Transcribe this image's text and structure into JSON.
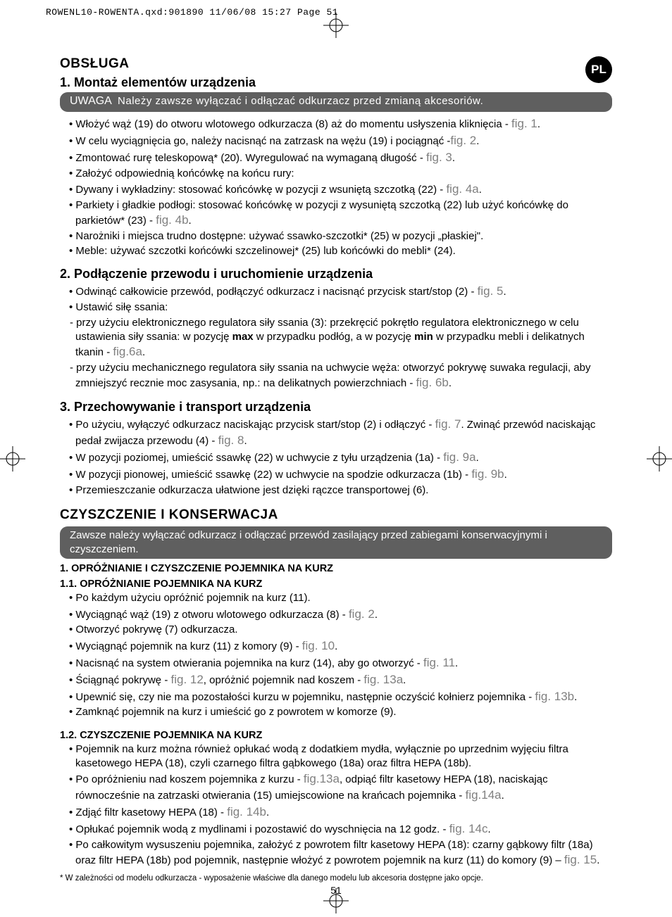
{
  "print_header": "ROWENL10-ROWENTA.qxd:901890  11/06/08  15:27  Page 51",
  "lang_badge": "PL",
  "page_number": "51",
  "section1": {
    "title": "OBSŁUGA",
    "sub1": {
      "title": "1. Montaż elementów urządzenia",
      "callout_label": "UWAGA",
      "callout_body": "Należy zawsze wyłączać i odłączać odkurzacz przed zmianą akcesoriów.",
      "items": [
        {
          "t": "bullet",
          "text": "Włożyć wąż (19) do otworu wlotowego odkurzacza (8) aż do momentu usłyszenia kliknięcia - ",
          "fig": "fig. 1",
          "tail": "."
        },
        {
          "t": "bullet",
          "text": "W celu wyciągnięcia go, należy nacisnąć na zatrzask na wężu (19) i pociągnąć -",
          "fig": "fig. 2",
          "tail": "."
        },
        {
          "t": "bullet",
          "text": "Zmontować rurę teleskopową* (20). Wyregulować na wymaganą długość - ",
          "fig": "fig. 3",
          "tail": "."
        },
        {
          "t": "bullet",
          "text": "Założyć odpowiednią końcówkę na końcu rury:"
        },
        {
          "t": "bullet",
          "text": "Dywany i wykładziny: stosować końcówkę w pozycji z wsuniętą szczotką (22) - ",
          "fig": "fig. 4a",
          "tail": "."
        },
        {
          "t": "bullet",
          "text": "Parkiety i gładkie podłogi: stosować końcówkę w pozycji z wysuniętą szczotką (22) lub użyć końcówkę do parkietów* (23)  - ",
          "fig": "fig. 4b",
          "tail": "."
        },
        {
          "t": "bullet",
          "text": "Narożniki i miejsca trudno dostępne: używać ssawko-szczotki* (25) w pozycji „płaskiej\"."
        },
        {
          "t": "bullet",
          "text": "Meble: używać szczotki końcówki szczelinowej* (25) lub końcówki do mebli* (24)."
        }
      ]
    },
    "sub2": {
      "title": "2. Podłączenie przewodu i uruchomienie urządzenia",
      "items": [
        {
          "t": "bullet",
          "text": "Odwinąć całkowicie przewód, podłączyć odkurzacz i nacisnąć przycisk start/stop (2) - ",
          "fig": "fig. 5",
          "tail": "."
        },
        {
          "t": "bullet",
          "text": "Ustawić siłę ssania:"
        },
        {
          "t": "dash",
          "pre": "przy użyciu elektronicznego regulatora siły ssania (3): przekręcić pokrętło regulatora elektronicznego w celu ustawienia siły ssania: w pozycję ",
          "b1": "max",
          "mid": " w przypadku podłóg, a w pozycję ",
          "b2": "min",
          "post": " w przypadku mebli i delikatnych tkanin - ",
          "fig": "fig.6a",
          "tail": "."
        },
        {
          "t": "dash",
          "text": "przy użyciu mechanicznego regulatora siły ssania na uchwycie węża: otworzyć pokrywę suwaka regulacji, aby zmniejszyć recznie moc zasysania, np.: na delikatnych powierzchniach - ",
          "fig": "fig. 6b",
          "tail": "."
        }
      ]
    },
    "sub3": {
      "title": "3. Przechowywanie i transport urządzenia",
      "items": [
        {
          "t": "bullet",
          "text": "Po użyciu, wyłączyć odkurzacz naciskając przycisk start/stop (2) i  odłączyć - ",
          "fig": "fig. 7",
          "mid": ". Zwinąć przewód naciskając pedał zwijacza przewodu (4) - ",
          "fig2": "fig. 8",
          "tail": "."
        },
        {
          "t": "bullet",
          "text": "W pozycji poziomej, umieścić ssawkę (22) w uchwycie z tyłu urządzenia (1a) - ",
          "fig": "fig. 9a",
          "tail": "."
        },
        {
          "t": "bullet",
          "text": "W pozycji pionowej, umieścić ssawkę (22) w uchwycie na spodzie odkurzacza (1b) - ",
          "fig": "fig. 9b",
          "tail": "."
        },
        {
          "t": "bullet",
          "text": "Przemieszczanie odkurzacza ułatwione jest dzięki rączce transportowej (6)."
        }
      ]
    }
  },
  "section2": {
    "title": "CZYSZCZENIE I KONSERWACJA",
    "callout": "Zawsze należy wyłączać odkurzacz i odłączać przewód zasilający przed zabiegami konserwacyjnymi i czyszczeniem.",
    "h11": "1. OPRÓŻNIANIE I CZYSZCZENIE POJEMNIKA NA KURZ",
    "h111": "1.1. OPRÓŻNIANIE POJEMNIKA NA KURZ",
    "items11": [
      {
        "t": "bullet",
        "text": "Po każdym użyciu opróżnić pojemnik na kurz (11)."
      },
      {
        "t": "bullet",
        "text": "Wyciągnąć wąż (19) z otworu wlotowego odkurzacza (8) - ",
        "fig": "fig. 2",
        "tail": "."
      },
      {
        "t": "bullet",
        "text": "Otworzyć pokrywę (7) odkurzacza."
      },
      {
        "t": "bullet",
        "text": "Wyciągnąć pojemnik na kurz (11) z komory (9) - ",
        "fig": "fig. 10",
        "tail": "."
      },
      {
        "t": "bullet",
        "text": "Nacisnąć na system otwierania pojemnika na kurz (14), aby go otworzyć - ",
        "fig": "fig. 11",
        "tail": "."
      },
      {
        "t": "bullet",
        "text": "Ściągnąć pokrywę - ",
        "fig": "fig. 12",
        "mid": ", opróżnić pojemnik nad koszem - ",
        "fig2": "fig. 13a",
        "tail": "."
      },
      {
        "t": "bullet",
        "text": "Upewnić się, czy nie ma pozostałości kurzu w pojemniku, następnie oczyścić kołnierz pojemnika - ",
        "fig": "fig. 13b",
        "tail": "."
      },
      {
        "t": "bullet",
        "text": "Zamknąć pojemnik na kurz i umieścić go z powrotem w komorze (9)."
      }
    ],
    "h112": "1.2. CZYSZCZENIE POJEMNIKA NA KURZ",
    "items12": [
      {
        "t": "bullet",
        "text": "Pojemnik na kurz można również opłukać wodą z dodatkiem mydła, wyłącznie po uprzednim wyjęciu filtra kasetowego HEPA (18), czyli czarnego filtra gąbkowego (18a) oraz filtra HEPA (18b)."
      },
      {
        "t": "bullet",
        "text": "Po opróżnieniu nad koszem pojemnika z kurzu - ",
        "fig": "fig.13a",
        "mid": ", odpiąć filtr kasetowy HEPA (18), naciskając równocześnie na zatrzaski otwierania (15) umiejscowione na krańcach pojemnika - ",
        "fig2": "fig.14a",
        "tail": "."
      },
      {
        "t": "bullet",
        "text": "Zdjąć filtr kasetowy HEPA (18) - ",
        "fig": "fig. 14b",
        "tail": "."
      },
      {
        "t": "bullet",
        "text": "Opłukać pojemnik wodą z mydlinami i pozostawić do wyschnięcia na 12 godz. - ",
        "fig": "fig. 14c",
        "tail": "."
      },
      {
        "t": "bullet",
        "text": "Po całkowitym wysuszeniu pojemnika, założyć z powrotem filtr kasetowy HEPA (18): czarny gąbkowy filtr (18a) oraz filtr HEPA (18b) pod pojemnik, następnie włożyć z powrotem pojemnik na kurz (11) do komory (9) – ",
        "fig": "fig. 15",
        "tail": "."
      }
    ]
  },
  "footnote": "* W zależności od modelu odkurzacza - wyposażenie właściwe dla danego modelu lub akcesoria dostępne jako opcje."
}
